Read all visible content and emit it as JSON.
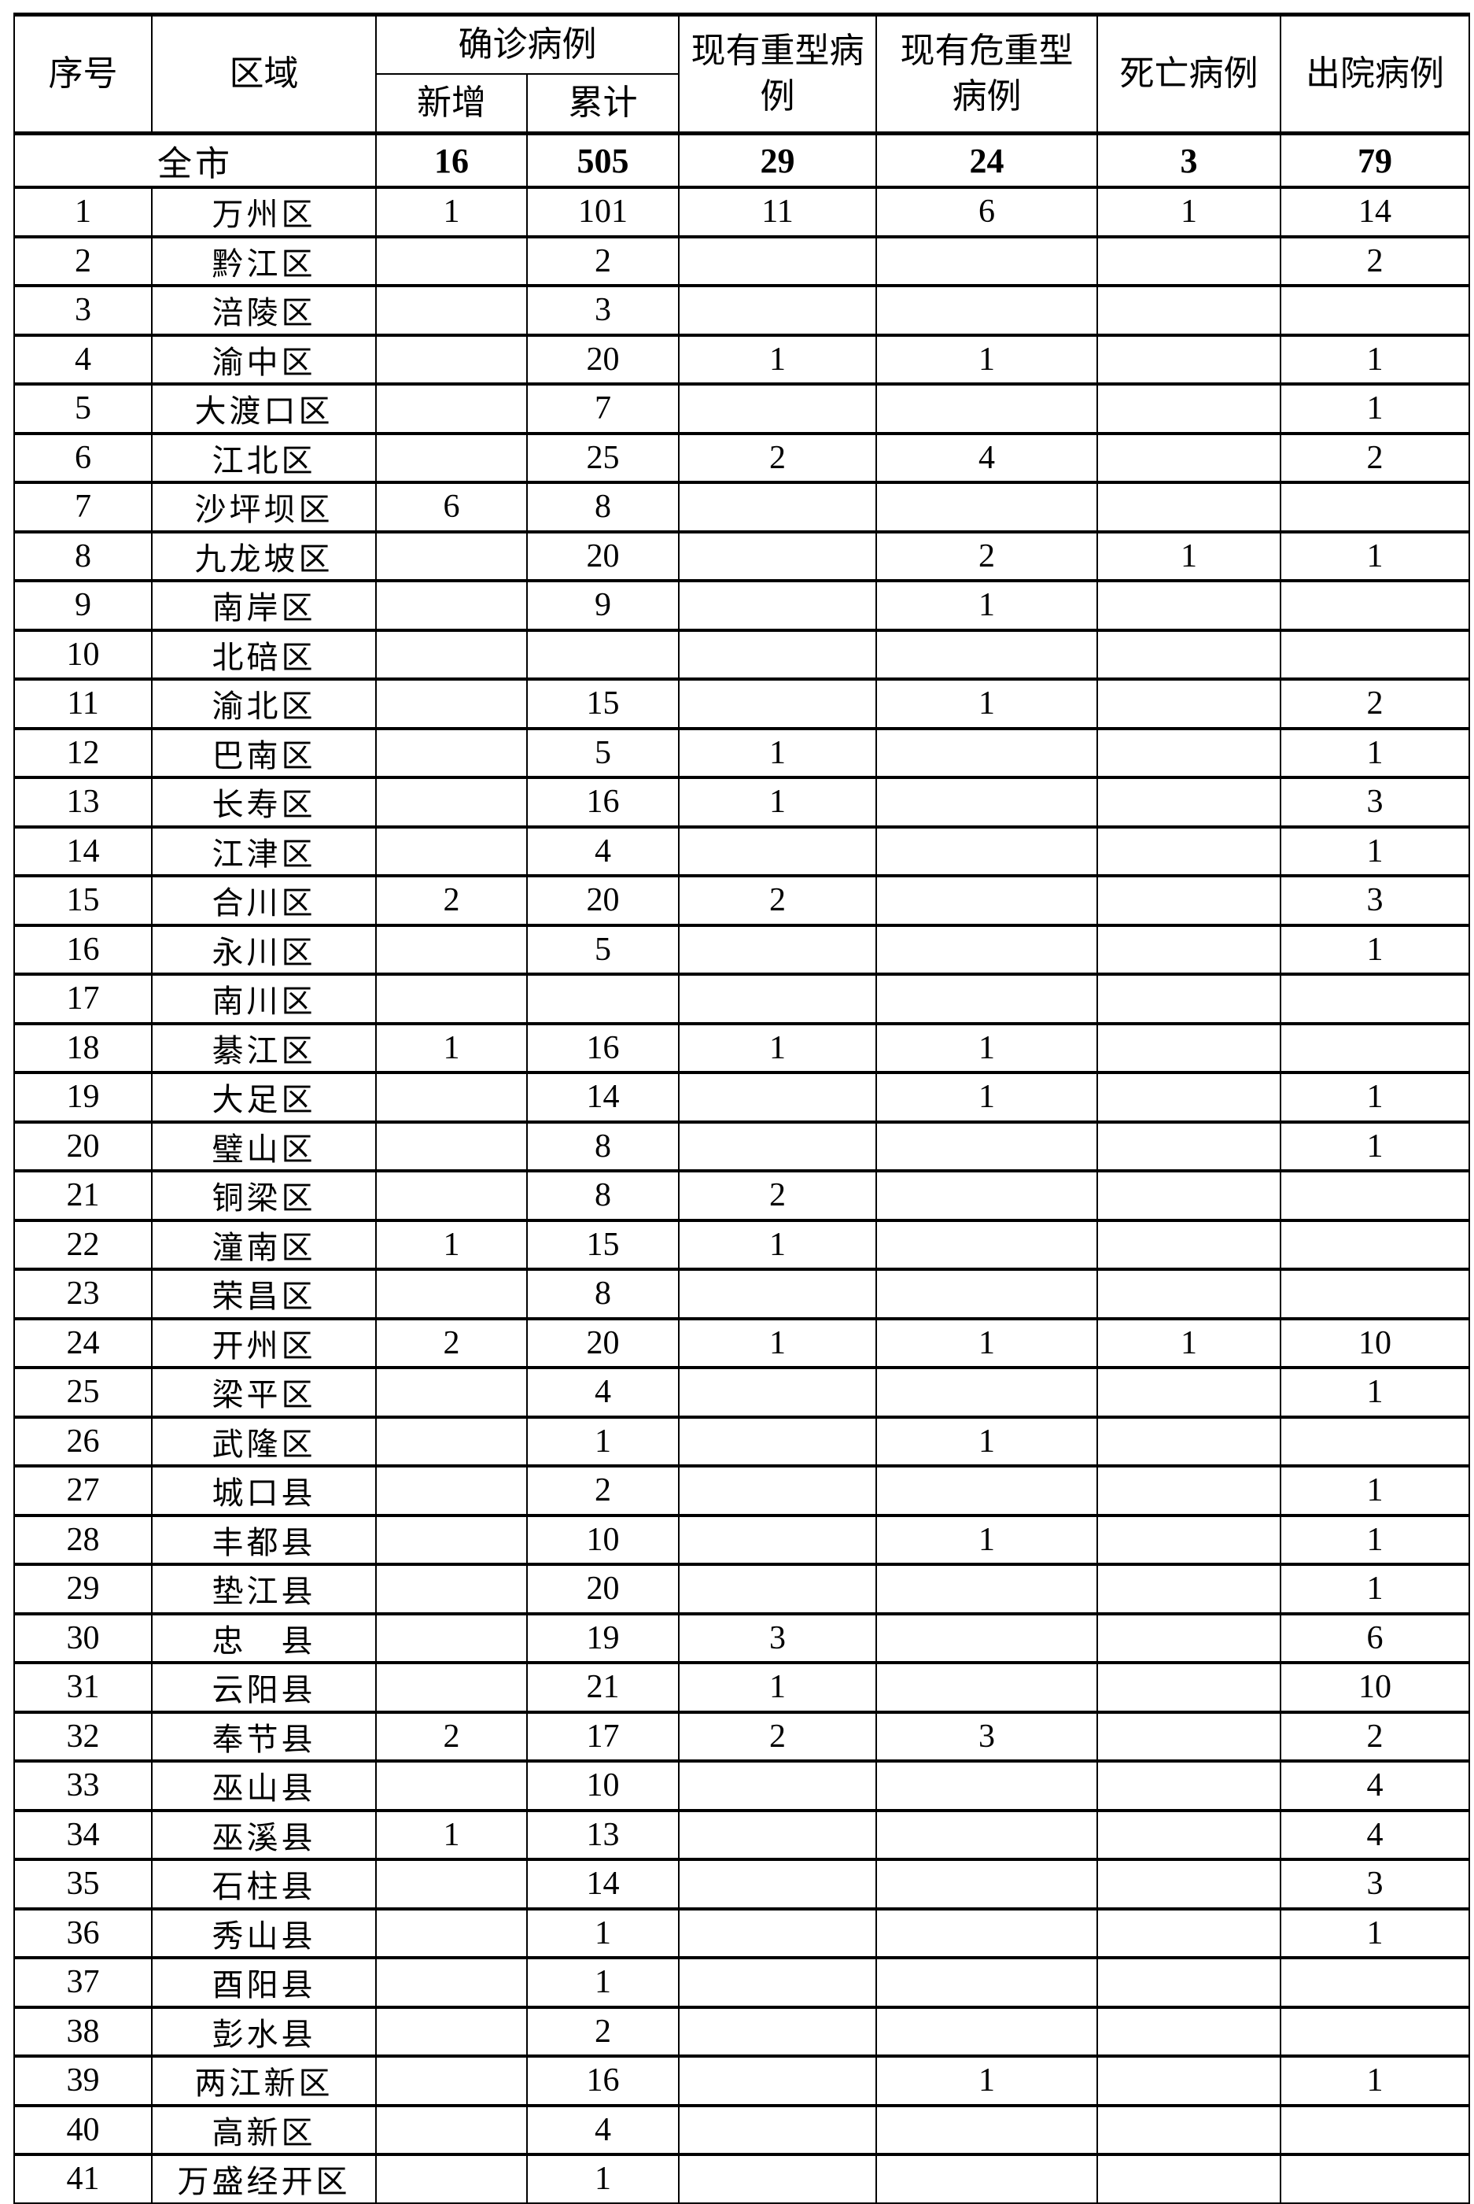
{
  "header": {
    "index": "序号",
    "region": "区域",
    "confirmed": "确诊病例",
    "new": "新增",
    "cumulative": "累计",
    "severe": "现有重型病例",
    "critical": "现有危重型病例",
    "deaths": "死亡病例",
    "discharged": "出院病例"
  },
  "total": {
    "label": "全市",
    "new": "16",
    "cumulative": "505",
    "severe": "29",
    "critical": "24",
    "deaths": "3",
    "discharged": "79"
  },
  "rows": [
    [
      "1",
      "万州区",
      "1",
      "101",
      "11",
      "6",
      "1",
      "14"
    ],
    [
      "2",
      "黔江区",
      "",
      "2",
      "",
      "",
      "",
      "2"
    ],
    [
      "3",
      "涪陵区",
      "",
      "3",
      "",
      "",
      "",
      ""
    ],
    [
      "4",
      "渝中区",
      "",
      "20",
      "1",
      "1",
      "",
      "1"
    ],
    [
      "5",
      "大渡口区",
      "",
      "7",
      "",
      "",
      "",
      "1"
    ],
    [
      "6",
      "江北区",
      "",
      "25",
      "2",
      "4",
      "",
      "2"
    ],
    [
      "7",
      "沙坪坝区",
      "6",
      "8",
      "",
      "",
      "",
      ""
    ],
    [
      "8",
      "九龙坡区",
      "",
      "20",
      "",
      "2",
      "1",
      "1"
    ],
    [
      "9",
      "南岸区",
      "",
      "9",
      "",
      "1",
      "",
      ""
    ],
    [
      "10",
      "北碚区",
      "",
      "",
      "",
      "",
      "",
      ""
    ],
    [
      "11",
      "渝北区",
      "",
      "15",
      "",
      "1",
      "",
      "2"
    ],
    [
      "12",
      "巴南区",
      "",
      "5",
      "1",
      "",
      "",
      "1"
    ],
    [
      "13",
      "长寿区",
      "",
      "16",
      "1",
      "",
      "",
      "3"
    ],
    [
      "14",
      "江津区",
      "",
      "4",
      "",
      "",
      "",
      "1"
    ],
    [
      "15",
      "合川区",
      "2",
      "20",
      "2",
      "",
      "",
      "3"
    ],
    [
      "16",
      "永川区",
      "",
      "5",
      "",
      "",
      "",
      "1"
    ],
    [
      "17",
      "南川区",
      "",
      "",
      "",
      "",
      "",
      ""
    ],
    [
      "18",
      "綦江区",
      "1",
      "16",
      "1",
      "1",
      "",
      ""
    ],
    [
      "19",
      "大足区",
      "",
      "14",
      "",
      "1",
      "",
      "1"
    ],
    [
      "20",
      "璧山区",
      "",
      "8",
      "",
      "",
      "",
      "1"
    ],
    [
      "21",
      "铜梁区",
      "",
      "8",
      "2",
      "",
      "",
      ""
    ],
    [
      "22",
      "潼南区",
      "1",
      "15",
      "1",
      "",
      "",
      ""
    ],
    [
      "23",
      "荣昌区",
      "",
      "8",
      "",
      "",
      "",
      ""
    ],
    [
      "24",
      "开州区",
      "2",
      "20",
      "1",
      "1",
      "1",
      "10"
    ],
    [
      "25",
      "梁平区",
      "",
      "4",
      "",
      "",
      "",
      "1"
    ],
    [
      "26",
      "武隆区",
      "",
      "1",
      "",
      "1",
      "",
      ""
    ],
    [
      "27",
      "城口县",
      "",
      "2",
      "",
      "",
      "",
      "1"
    ],
    [
      "28",
      "丰都县",
      "",
      "10",
      "",
      "1",
      "",
      "1"
    ],
    [
      "29",
      "垫江县",
      "",
      "20",
      "",
      "",
      "",
      "1"
    ],
    [
      "30",
      "忠　县",
      "",
      "19",
      "3",
      "",
      "",
      "6"
    ],
    [
      "31",
      "云阳县",
      "",
      "21",
      "1",
      "",
      "",
      "10"
    ],
    [
      "32",
      "奉节县",
      "2",
      "17",
      "2",
      "3",
      "",
      "2"
    ],
    [
      "33",
      "巫山县",
      "",
      "10",
      "",
      "",
      "",
      "4"
    ],
    [
      "34",
      "巫溪县",
      "1",
      "13",
      "",
      "",
      "",
      "4"
    ],
    [
      "35",
      "石柱县",
      "",
      "14",
      "",
      "",
      "",
      "3"
    ],
    [
      "36",
      "秀山县",
      "",
      "1",
      "",
      "",
      "",
      "1"
    ],
    [
      "37",
      "酉阳县",
      "",
      "1",
      "",
      "",
      "",
      ""
    ],
    [
      "38",
      "彭水县",
      "",
      "2",
      "",
      "",
      "",
      ""
    ],
    [
      "39",
      "两江新区",
      "",
      "16",
      "",
      "1",
      "",
      "1"
    ],
    [
      "40",
      "高新区",
      "",
      "4",
      "",
      "",
      "",
      ""
    ],
    [
      "41",
      "万盛经开区",
      "",
      "1",
      "",
      "",
      "",
      ""
    ]
  ]
}
